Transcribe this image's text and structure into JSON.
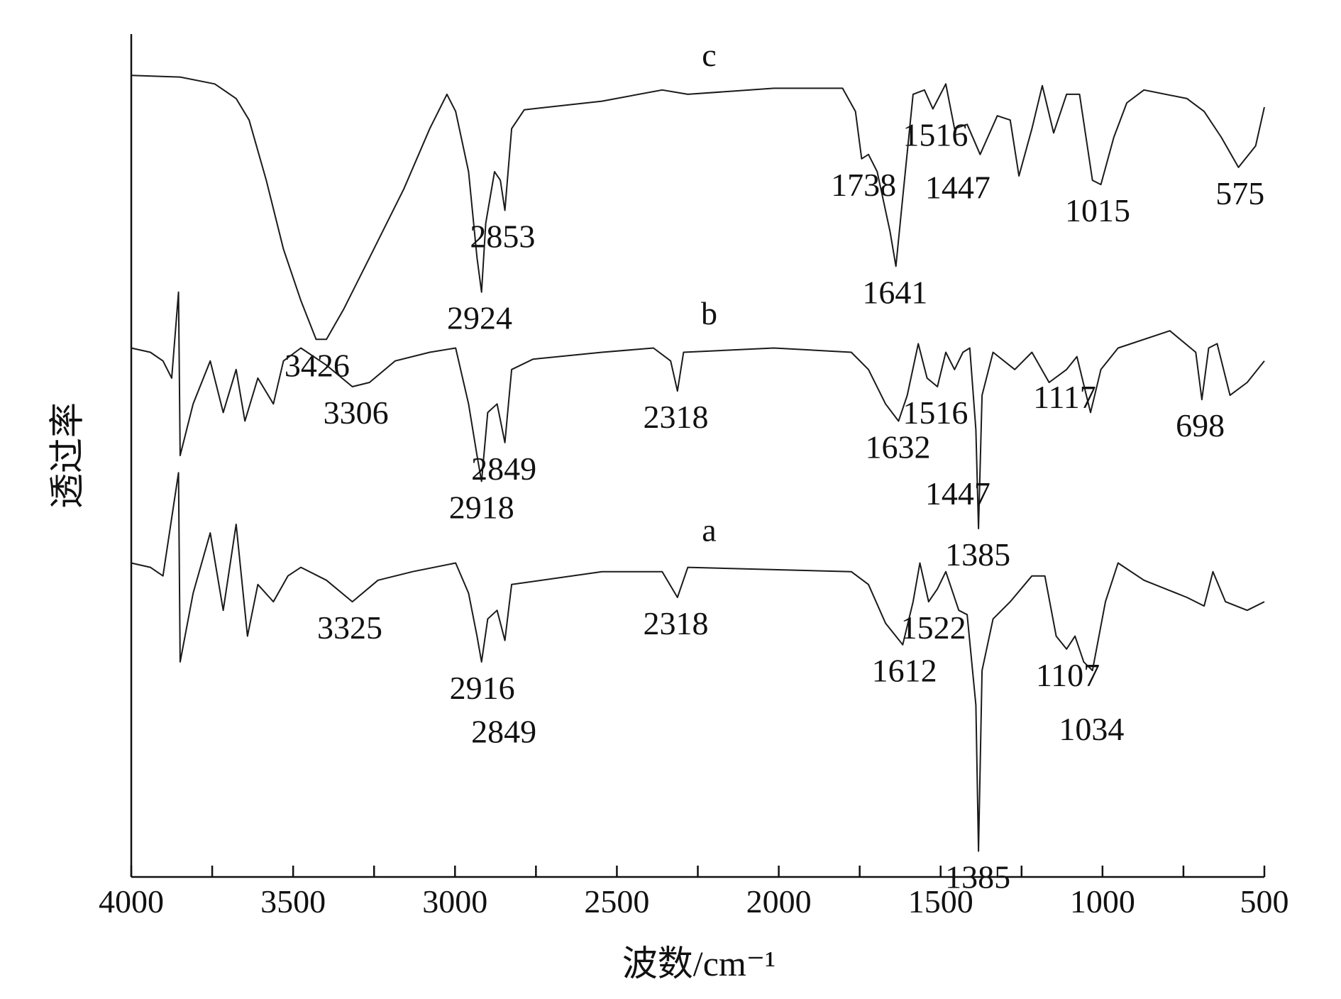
{
  "chart_data": {
    "type": "line",
    "x_label": "波数/cm⁻¹",
    "y_label": "透过率",
    "xlim": [
      4000,
      500
    ],
    "ylim": [
      0,
      98
    ],
    "xticks": [
      4000,
      3500,
      3000,
      2500,
      2000,
      1500,
      1000,
      500
    ],
    "xminorticks": [
      3750,
      3250,
      2750,
      2250,
      1750,
      1250,
      750
    ],
    "series": [
      {
        "name": "c",
        "color": "#1a1a1a",
        "x": [
          4000,
          3849,
          3742,
          3676,
          3636,
          3583,
          3530,
          3476,
          3429,
          3397,
          3344,
          3264,
          3158,
          3078,
          3025,
          2998,
          2958,
          2932,
          2918,
          2905,
          2878,
          2860,
          2846,
          2825,
          2786,
          2546,
          2360,
          2281,
          2015,
          1803,
          1763,
          1744,
          1723,
          1696,
          1656,
          1638,
          1617,
          1585,
          1550,
          1524,
          1484,
          1457,
          1418,
          1378,
          1325,
          1285,
          1258,
          1218,
          1186,
          1151,
          1111,
          1071,
          1031,
          1005,
          965,
          925,
          872,
          739,
          686,
          633,
          580,
          527,
          500
        ],
        "values": [
          93.2,
          93.0,
          92.2,
          90.5,
          88,
          81,
          73,
          67,
          62.5,
          62.5,
          66,
          72,
          80,
          87,
          91,
          89,
          82,
          72,
          68,
          76,
          82,
          81,
          77.5,
          87,
          89.2,
          90.2,
          91.5,
          91,
          91.7,
          91.7,
          89,
          83.5,
          84,
          82,
          75,
          71,
          79,
          91,
          91.5,
          89.3,
          92.2,
          87,
          87.5,
          84,
          88.5,
          88,
          81.5,
          87,
          92,
          86.5,
          91,
          91,
          81,
          80.5,
          86,
          90,
          91.5,
          90.5,
          89,
          86,
          82.5,
          85,
          89.5
        ],
        "peaks": [
          3426,
          2924,
          2853,
          1738,
          1641,
          1516,
          1447,
          1015,
          575
        ]
      },
      {
        "name": "b",
        "color": "#1a1a1a",
        "x": [
          4000,
          3941,
          3902,
          3875,
          3854,
          3849,
          3809,
          3756,
          3716,
          3676,
          3649,
          3609,
          3561,
          3530,
          3476,
          3397,
          3317,
          3264,
          3185,
          3078,
          2998,
          2958,
          2932,
          2918,
          2899,
          2870,
          2846,
          2825,
          2759,
          2546,
          2387,
          2334,
          2313,
          2294,
          2015,
          1776,
          1723,
          1670,
          1630,
          1603,
          1569,
          1542,
          1510,
          1484,
          1457,
          1431,
          1410,
          1391,
          1383,
          1372,
          1338,
          1271,
          1218,
          1165,
          1111,
          1079,
          1037,
          1005,
          952,
          792,
          712,
          693,
          672,
          646,
          606,
          553,
          500
        ],
        "values": [
          61.5,
          61,
          60,
          58,
          68,
          49,
          55,
          60,
          54,
          59,
          53,
          58,
          55,
          60,
          61.5,
          59.5,
          57,
          57.5,
          60,
          61,
          61.5,
          55,
          49,
          46,
          54,
          55,
          50.5,
          59,
          60.2,
          61,
          61.5,
          60,
          56.5,
          61,
          61.5,
          61,
          59,
          55,
          53,
          56,
          62,
          58,
          57,
          61,
          59,
          61,
          61.5,
          52,
          40.5,
          56,
          61,
          59,
          61,
          57.5,
          59,
          60.5,
          54,
          59,
          61.5,
          63.5,
          61,
          55.5,
          61.5,
          62,
          56,
          57.5,
          60
        ],
        "peaks": [
          3306,
          2918,
          2849,
          2318,
          1632,
          1516,
          1447,
          1385,
          1117,
          698
        ]
      },
      {
        "name": "a",
        "color": "#1a1a1a",
        "x": [
          4000,
          3941,
          3902,
          3854,
          3849,
          3809,
          3756,
          3716,
          3676,
          3641,
          3609,
          3561,
          3516,
          3476,
          3397,
          3317,
          3238,
          3131,
          2998,
          2958,
          2932,
          2918,
          2899,
          2870,
          2846,
          2825,
          2546,
          2360,
          2313,
          2281,
          1776,
          1723,
          1670,
          1617,
          1585,
          1564,
          1537,
          1510,
          1484,
          1444,
          1418,
          1391,
          1383,
          1372,
          1338,
          1285,
          1218,
          1178,
          1143,
          1111,
          1085,
          1058,
          1031,
          991,
          952,
          872,
          739,
          686,
          659,
          620,
          553,
          500
        ],
        "values": [
          36.5,
          36,
          35,
          47,
          25,
          33,
          40,
          31,
          41,
          28,
          34,
          32,
          35,
          36,
          34.5,
          32,
          34.5,
          35.5,
          36.5,
          33,
          28,
          25,
          30,
          31,
          27.5,
          34,
          35.5,
          35.5,
          32.5,
          36,
          35.5,
          34,
          29.5,
          27,
          32,
          36.5,
          32,
          33.5,
          35.5,
          31,
          30.5,
          20,
          3,
          24,
          30,
          32,
          35,
          35,
          28,
          26.5,
          28,
          25,
          24,
          32,
          36.5,
          34.5,
          32.5,
          31.5,
          35.5,
          32,
          31,
          32
        ],
        "peaks": [
          3325,
          2916,
          2849,
          2318,
          1612,
          1522,
          1385,
          1107,
          1034
        ]
      }
    ]
  }
}
